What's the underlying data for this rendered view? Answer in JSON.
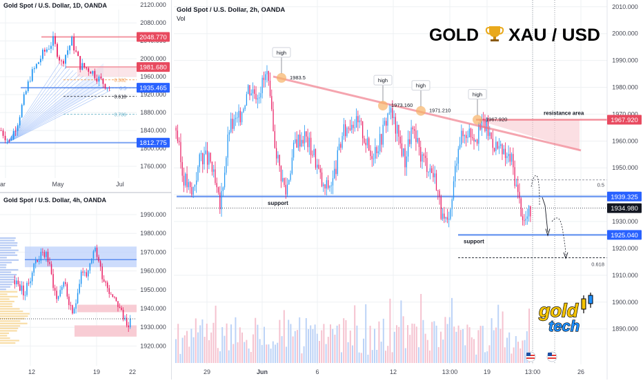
{
  "brand": {
    "title_left": "GOLD",
    "title_icon": "trophy-icon",
    "title_right": "XAU / USD",
    "logo_word1": "gold",
    "logo_word2": "tech",
    "logo_colors": {
      "gold": "#f5c400",
      "tech": "#1e90ff",
      "outline": "#000000"
    }
  },
  "colors": {
    "bull": "#2196f3",
    "bear": "#e91e63",
    "grid": "#eef0f3",
    "line_blue": "#5b8def",
    "line_red": "#ef6b7b",
    "label_red": "#e84a5f",
    "label_blue": "#2962ff",
    "label_black": "#131722",
    "high_marker": "#f7b267"
  },
  "chart_data": [
    {
      "id": "daily",
      "type": "candlestick",
      "title": "Gold Spot / U.S. Dollar, 1D, OANDA",
      "x_ticks": [
        "ar",
        "May",
        "Jul"
      ],
      "y_ticks": [
        "2120.000",
        "2080.000",
        "2040.000",
        "2000.000",
        "1960.000",
        "1920.000",
        "1880.000",
        "1840.000",
        "1800.000",
        "1760.000"
      ],
      "ylim": [
        1740,
        2125
      ],
      "lines": [
        {
          "label": "2048.770",
          "value": 2048.77,
          "color": "red"
        },
        {
          "label": "1981.680",
          "value": 1981.68,
          "color": "red"
        },
        {
          "label": "1935.465",
          "value": 1935.465,
          "color": "blue"
        },
        {
          "label": "1812.775",
          "value": 1812.775,
          "color": "blue"
        }
      ],
      "fib_labels": [
        "0.382",
        "0.5",
        "0.618",
        "0.786"
      ],
      "fib_values": [
        1953,
        1935,
        1916,
        1876
      ]
    },
    {
      "id": "h4",
      "type": "candlestick",
      "title": "Gold Spot / U.S. Dollar, 4h, OANDA",
      "x_ticks": [
        "12",
        "19",
        "22"
      ],
      "y_ticks": [
        "1990.000",
        "1980.000",
        "1970.000",
        "1960.000",
        "1950.000",
        "1940.000",
        "1930.000",
        "1920.000"
      ],
      "ylim": [
        1915,
        1997
      ],
      "zones": [
        {
          "from": 1962,
          "to": 1973,
          "color": "blue"
        },
        {
          "from": 1938,
          "to": 1942,
          "color": "red"
        },
        {
          "from": 1925,
          "to": 1931,
          "color": "red"
        }
      ]
    },
    {
      "id": "h2",
      "type": "candlestick",
      "title": "Gold Spot / U.S. Dollar, 2h, OANDA",
      "subtitle": "Vol",
      "x_ticks": [
        "29",
        "Jun",
        "6",
        "12",
        "13:00",
        "19",
        "13:00",
        "26"
      ],
      "y_ticks": [
        "2010.000",
        "2000.000",
        "1990.000",
        "1980.000",
        "1970.000",
        "1960.000",
        "1950.000",
        "1940.000",
        "1930.000",
        "1920.000",
        "1910.000",
        "1900.000",
        "1890.000"
      ],
      "ylim": [
        1884,
        2012
      ],
      "price_labels": [
        {
          "text": "1967.920",
          "value": 1967.92,
          "style": "red"
        },
        {
          "text": "1939.325",
          "value": 1939.325,
          "style": "blue"
        },
        {
          "text": "1934.980",
          "value": 1934.98,
          "style": "black"
        },
        {
          "text": "1925.040",
          "value": 1925.04,
          "style": "blue"
        }
      ],
      "highs": [
        {
          "label": "high",
          "value_text": "1983.5",
          "value": 1983.5
        },
        {
          "label": "high",
          "value_text": "1973.160",
          "value": 1973.16
        },
        {
          "label": "high",
          "value_text": "1971.210",
          "value": 1971.21
        },
        {
          "label": "high",
          "value_text": "1967.920",
          "value": 1967.92
        }
      ],
      "annotations": {
        "resistance": "resistance area",
        "support_upper": "support",
        "support_lower": "support",
        "fib_05": "0.5",
        "fib_0618": "0.618"
      },
      "levels": {
        "support_upper": 1939.325,
        "support_lower": 1925.04,
        "fib_05": 1945.5,
        "fib_0618": 1916.5,
        "resistance": 1967.92,
        "dotted": 1934.98
      }
    }
  ]
}
